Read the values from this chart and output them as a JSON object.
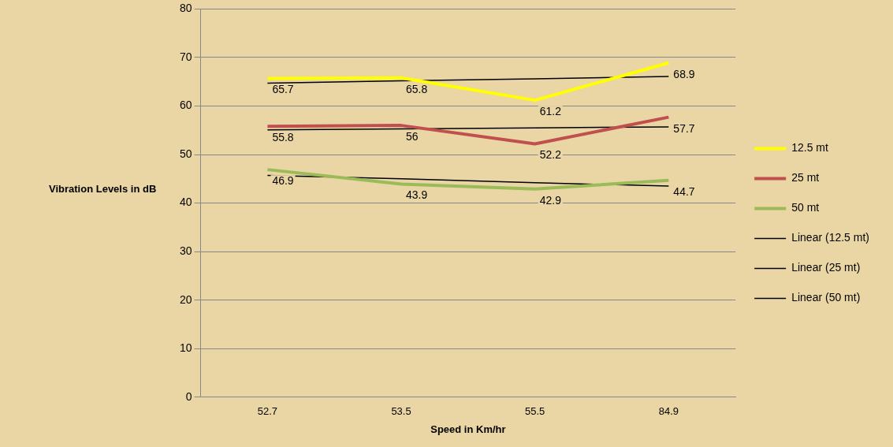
{
  "chart_data": {
    "type": "line",
    "xlabel": "Speed in Km/hr",
    "ylabel": "Vibration Levels in dB",
    "categories": [
      "52.7",
      "53.5",
      "55.5",
      "84.9"
    ],
    "series": [
      {
        "name": "12.5 mt",
        "color": "#ffff00",
        "values": [
          65.7,
          65.8,
          61.2,
          68.9
        ],
        "value_labels": [
          "65.7",
          "65.8",
          "61.2",
          "68.9"
        ]
      },
      {
        "name": "25 mt",
        "color": "#c0504d",
        "values": [
          55.8,
          56,
          52.2,
          57.7
        ],
        "value_labels": [
          "55.8",
          "56",
          "52.2",
          "57.7"
        ]
      },
      {
        "name": "50 mt",
        "color": "#9bbb59",
        "values": [
          46.9,
          43.9,
          42.9,
          44.7
        ],
        "value_labels": [
          "46.9",
          "43.9",
          "42.9",
          "44.7"
        ]
      },
      {
        "name": "Linear (12.5 mt)",
        "color": "#000000",
        "values": [
          64.7,
          65.2,
          65.6,
          66.1
        ]
      },
      {
        "name": "Linear (25 mt)",
        "color": "#000000",
        "values": [
          55.1,
          55.3,
          55.5,
          55.7
        ]
      },
      {
        "name": "Linear (50 mt)",
        "color": "#000000",
        "values": [
          45.7,
          45.0,
          44.2,
          43.5
        ]
      }
    ],
    "ylim": [
      0,
      80
    ],
    "yticks": [
      0,
      10,
      20,
      30,
      40,
      50,
      60,
      70,
      80
    ],
    "grid": "y",
    "legend": "right",
    "marker": "none",
    "line_style": "solid"
  }
}
